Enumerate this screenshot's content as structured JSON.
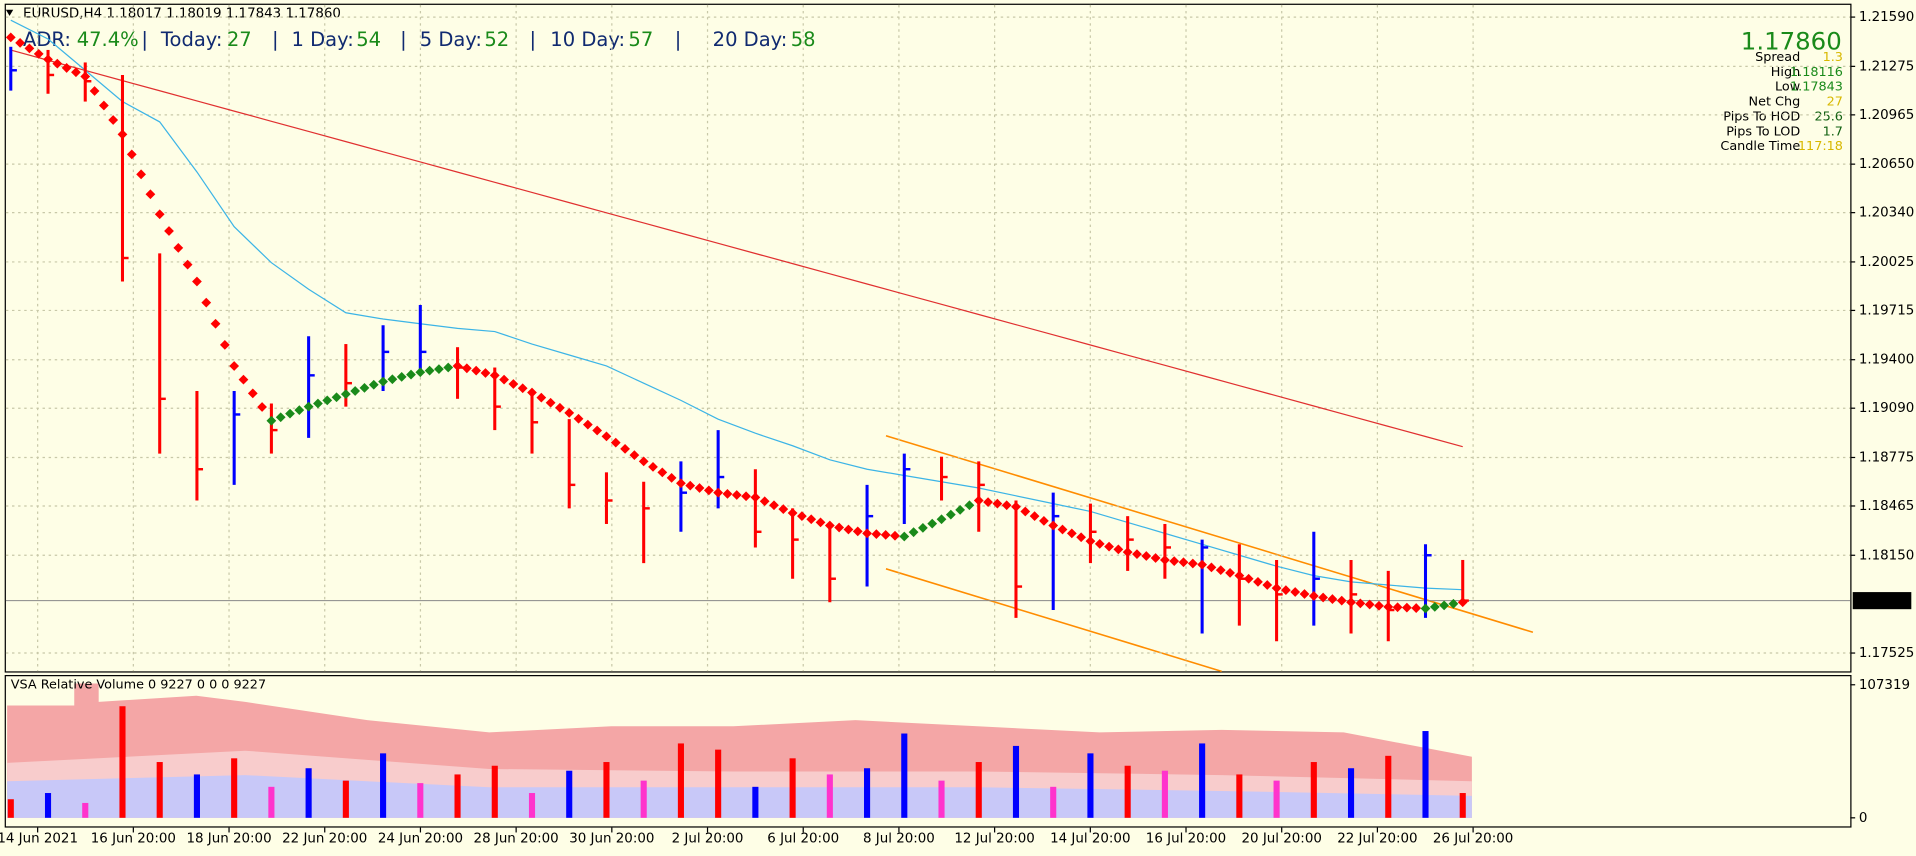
{
  "header": {
    "symbol": "EURUSD,H4  1.18017 1.18019 1.17843 1.17860"
  },
  "adr": {
    "items": [
      {
        "label": "ADR:",
        "value": "47.4%"
      },
      {
        "label": "Today:",
        "value": "27"
      },
      {
        "label": "1 Day:",
        "value": "54"
      },
      {
        "label": "5 Day:",
        "value": "52"
      },
      {
        "label": "10 Day:",
        "value": "57"
      },
      {
        "label": "20 Day:",
        "value": "58"
      }
    ],
    "separator": "|"
  },
  "info": {
    "price": "1.17860",
    "rows": [
      {
        "label": "Spread",
        "value": "1.3",
        "color": "#d8b800"
      },
      {
        "label": "High",
        "value": "1.18116",
        "color": "#1a8a1a"
      },
      {
        "label": "Low",
        "value": "1.17843",
        "color": "#1a8a1a"
      },
      {
        "label": "Net Chg",
        "value": "27",
        "color": "#d8b800"
      },
      {
        "label": "Pips To HOD",
        "value": "25.6",
        "color": "#106010"
      },
      {
        "label": "Pips To LOD",
        "value": "1.7",
        "color": "#106010"
      },
      {
        "label": "Candle Time",
        "value": "117:18",
        "color": "#d8b800"
      }
    ]
  },
  "chart_data": [
    {
      "type": "ohlc",
      "ylim": [
        1.17408,
        1.21668
      ],
      "yticks": [
        {
          "value": 1.2159,
          "label": "1.21590"
        },
        1.21275,
        1.20965,
        {
          "value": 1.2065,
          "label": "1.20650"
        },
        {
          "value": 1.2034,
          "label": "1.20340"
        },
        1.20025,
        1.19715,
        {
          "value": 1.194,
          "label": "1.19400"
        },
        {
          "value": 1.1909,
          "label": "1.19090"
        },
        1.18775,
        1.18465,
        {
          "value": 1.1815,
          "label": "1.18150"
        },
        1.17525
      ],
      "current": {
        "value": 1.1786,
        "label": "1.17860"
      },
      "x_labels": [
        "14 Jun 2021",
        "16 Jun 20:00",
        "18 Jun 20:00",
        "22 Jun 20:00",
        "24 Jun 20:00",
        "28 Jun 20:00",
        "30 Jun 20:00",
        "2 Jul 20:00",
        "6 Jul 20:00",
        "8 Jul 20:00",
        "12 Jul 20:00",
        "14 Jul 20:00",
        "16 Jul 20:00",
        "20 Jul 20:00",
        "22 Jul 20:00",
        "26 Jul 20:00"
      ],
      "grid": true,
      "up_color": "#0000ff",
      "down_color": "#ff0000",
      "high": [
        1.214,
        1.2138,
        1.213,
        1.2122,
        1.2008,
        1.192,
        1.192,
        1.1912,
        1.1955,
        1.195,
        1.1962,
        1.1975,
        1.1948,
        1.1935,
        1.192,
        1.1902,
        1.1868,
        1.1862,
        1.1875,
        1.1895,
        1.187,
        1.1845,
        1.1835,
        1.186,
        1.188,
        1.1878,
        1.1875,
        1.185,
        1.1855,
        1.1848,
        1.184,
        1.1835,
        1.1825,
        1.1822,
        1.1812,
        1.183,
        1.1812,
        1.1805,
        1.1822,
        1.1812
      ],
      "low": [
        1.2112,
        1.211,
        1.2105,
        1.199,
        1.188,
        1.185,
        1.186,
        1.188,
        1.189,
        1.191,
        1.192,
        1.193,
        1.1915,
        1.1895,
        1.188,
        1.1845,
        1.1835,
        1.181,
        1.183,
        1.1845,
        1.182,
        1.18,
        1.1785,
        1.1795,
        1.1835,
        1.185,
        1.183,
        1.1775,
        1.178,
        1.181,
        1.1805,
        1.18,
        1.1765,
        1.177,
        1.176,
        1.177,
        1.1765,
        1.176,
        1.1775,
        1.1784
      ],
      "close": [
        1.2125,
        1.2122,
        1.2118,
        1.2005,
        1.1915,
        1.187,
        1.1905,
        1.1895,
        1.193,
        1.1925,
        1.1945,
        1.1945,
        1.1935,
        1.191,
        1.19,
        1.186,
        1.185,
        1.1845,
        1.1855,
        1.1865,
        1.183,
        1.1825,
        1.18,
        1.184,
        1.187,
        1.1865,
        1.186,
        1.1795,
        1.184,
        1.183,
        1.1825,
        1.182,
        1.182,
        1.18,
        1.179,
        1.18,
        1.179,
        1.178,
        1.1815,
        1.1786
      ],
      "ma_slow": {
        "color": "#e03030",
        "values": [
          1.21379,
          1.21314,
          1.21249,
          1.21184,
          1.21119,
          1.21054,
          1.20989,
          1.20924,
          1.20859,
          1.20794,
          1.20729,
          1.20664,
          1.20599,
          1.20534,
          1.20469,
          1.20404,
          1.20339,
          1.20274,
          1.20209,
          1.20144,
          1.20079,
          1.20014,
          1.19949,
          1.19884,
          1.19819,
          1.19754,
          1.19689,
          1.19624,
          1.19559,
          1.19494,
          1.19429,
          1.19364,
          1.19299,
          1.19234,
          1.19169,
          1.19104,
          1.19039,
          1.18974,
          1.18909,
          1.18844
        ]
      },
      "ma_fast": {
        "color": "#3cb4e6",
        "values": [
          1.2157,
          1.2145,
          1.2125,
          1.2105,
          1.2092,
          1.206,
          1.2025,
          1.2002,
          1.1985,
          1.197,
          1.1966,
          1.1963,
          1.196,
          1.1958,
          1.195,
          1.1943,
          1.1936,
          1.1925,
          1.1914,
          1.1902,
          1.1893,
          1.1885,
          1.1876,
          1.187,
          1.1866,
          1.1862,
          1.1858,
          1.1853,
          1.1848,
          1.1843,
          1.1836,
          1.1829,
          1.1822,
          1.1815,
          1.1808,
          1.1802,
          1.1798,
          1.1796,
          1.1794,
          1.1793
        ]
      },
      "trend": {
        "up_color": "#1a8a1a",
        "down_color": "#ff0000",
        "values": [
          1.2146,
          1.2132,
          1.2121,
          1.2084,
          1.2033,
          1.199,
          1.1936,
          1.1901,
          1.191,
          1.1918,
          1.1926,
          1.1932,
          1.1936,
          1.193,
          1.1919,
          1.1906,
          1.1891,
          1.1875,
          1.1861,
          1.1855,
          1.1852,
          1.1842,
          1.1834,
          1.1829,
          1.1827,
          1.1838,
          1.185,
          1.1846,
          1.1834,
          1.1824,
          1.1817,
          1.1812,
          1.1809,
          1.1802,
          1.1794,
          1.1789,
          1.1785,
          1.1782,
          1.1781,
          1.1785
        ]
      }
    },
    {
      "type": "bar",
      "title": "VSA Relative Volume 0 9227 0 0 0 9227",
      "ylim": [
        0,
        107319
      ],
      "yticks": [
        0,
        107319
      ],
      "values": [
        15000,
        20000,
        12000,
        90000,
        45000,
        35000,
        48000,
        25000,
        40000,
        30000,
        52000,
        28000,
        35000,
        42000,
        20000,
        38000,
        45000,
        30000,
        60000,
        55000,
        25000,
        48000,
        35000,
        40000,
        68000,
        30000,
        45000,
        58000,
        25000,
        52000,
        42000,
        38000,
        60000,
        35000,
        30000,
        45000,
        40000,
        50000,
        70000,
        20000
      ],
      "colors": [
        "#ff0000",
        "#0000ff",
        "#ff33cc",
        "#ff0000",
        "#ff0000",
        "#0000ff",
        "#ff0000",
        "#ff33cc",
        "#0000ff",
        "#ff0000",
        "#0000ff",
        "#ff33cc",
        "#ff0000",
        "#ff0000",
        "#ff33cc",
        "#0000ff",
        "#ff0000",
        "#ff33cc",
        "#ff0000",
        "#ff0000",
        "#0000ff",
        "#ff0000",
        "#ff33cc",
        "#0000ff",
        "#0000ff",
        "#ff33cc",
        "#ff0000",
        "#0000ff",
        "#ff33cc",
        "#0000ff",
        "#ff0000",
        "#ff33cc",
        "#0000ff",
        "#ff0000",
        "#ff33cc",
        "#ff0000",
        "#0000ff",
        "#ff0000",
        "#0000ff",
        "#ff0000"
      ]
    }
  ]
}
